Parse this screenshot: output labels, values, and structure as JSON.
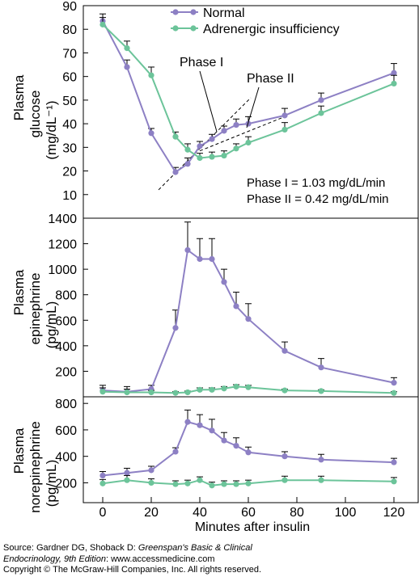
{
  "chart_data": [
    {
      "type": "line",
      "ylabel_lines": [
        "Plasma",
        "glucose",
        "(mg/dL⁻¹)"
      ],
      "ylim": [
        0,
        90
      ],
      "yticks": [
        "10",
        "20",
        "30",
        "40",
        "50",
        "60",
        "70",
        "80",
        "90"
      ],
      "ytick_values": [
        10,
        20,
        30,
        40,
        50,
        60,
        70,
        80,
        90
      ],
      "legend": {
        "placement": "top-center",
        "items": [
          "Normal",
          "Adrenergic insufficiency"
        ]
      },
      "series": [
        {
          "name": "Normal",
          "color": "#8d80c4",
          "x": [
            0,
            10,
            20,
            30,
            35,
            40,
            45,
            50,
            55,
            60,
            75,
            90,
            120
          ],
          "y": [
            83.5,
            64,
            36,
            19.5,
            23,
            30.5,
            33.5,
            37,
            39.5,
            40,
            43.5,
            50,
            61.5
          ],
          "err": [
            3,
            3,
            2,
            2,
            2.5,
            2,
            2,
            2,
            2.5,
            3,
            3,
            3,
            4
          ]
        },
        {
          "name": "Adrenergic insufficiency",
          "color": "#6cc49a",
          "x": [
            0,
            10,
            20,
            30,
            35,
            40,
            45,
            50,
            55,
            60,
            75,
            90,
            120
          ],
          "y": [
            82,
            72,
            60.5,
            34.5,
            29,
            25.5,
            26,
            26.5,
            29.5,
            32,
            37.5,
            44.5,
            57
          ],
          "err": [
            3,
            3,
            3.5,
            2,
            2.5,
            2,
            2,
            2,
            2,
            2.5,
            3,
            3,
            3.5
          ]
        }
      ],
      "annotations": {
        "phase1_label": "Phase I",
        "phase2_label": "Phase II",
        "rate1": "Phase I = 1.03 mg/dL/min",
        "rate2": "Phase II = 0.42 mg/dL/min"
      },
      "phase_lines": {
        "phase1": {
          "x": [
            23,
            61
          ],
          "y": [
            12,
            51
          ]
        },
        "phase2": {
          "x": [
            40,
            75
          ],
          "y": [
            28.5,
            43
          ]
        }
      }
    },
    {
      "type": "line",
      "ylabel_lines": [
        "Plasma",
        "epinephrine",
        "(pg/mL)"
      ],
      "ylim": [
        0,
        1400
      ],
      "yticks": [
        "200",
        "400",
        "600",
        "800",
        "1000",
        "1200",
        "1400"
      ],
      "ytick_values": [
        200,
        400,
        600,
        800,
        1000,
        1200,
        1400
      ],
      "series": [
        {
          "name": "Normal",
          "color": "#8d80c4",
          "x": [
            0,
            10,
            20,
            30,
            35,
            40,
            45,
            50,
            55,
            60,
            75,
            90,
            120
          ],
          "y": [
            50,
            40,
            60,
            540,
            1150,
            1080,
            1080,
            900,
            710,
            610,
            360,
            230,
            110
          ],
          "err": [
            40,
            40,
            30,
            140,
            220,
            160,
            160,
            100,
            110,
            120,
            70,
            70,
            40
          ]
        },
        {
          "name": "Adrenergic insufficiency",
          "color": "#6cc49a",
          "x": [
            0,
            10,
            20,
            30,
            35,
            40,
            45,
            50,
            55,
            60,
            75,
            90,
            120
          ],
          "y": [
            40,
            35,
            35,
            30,
            35,
            55,
            55,
            65,
            80,
            75,
            50,
            45,
            30
          ],
          "err": [
            30,
            25,
            15,
            10,
            10,
            15,
            15,
            15,
            15,
            15,
            10,
            10,
            10
          ]
        }
      ]
    },
    {
      "type": "line",
      "ylabel_lines": [
        "Plasma",
        "norepinephrine",
        "(pg/mL)"
      ],
      "ylim": [
        50,
        850
      ],
      "yticks": [
        "200",
        "400",
        "600",
        "800"
      ],
      "ytick_values": [
        200,
        400,
        600,
        800
      ],
      "series": [
        {
          "name": "Normal",
          "color": "#8d80c4",
          "x": [
            0,
            10,
            20,
            30,
            35,
            40,
            45,
            50,
            55,
            60,
            75,
            90,
            120
          ],
          "y": [
            255,
            275,
            295,
            435,
            660,
            635,
            595,
            520,
            480,
            430,
            400,
            375,
            355
          ],
          "err": [
            30,
            35,
            30,
            30,
            90,
            80,
            85,
            60,
            60,
            40,
            35,
            40,
            30
          ]
        },
        {
          "name": "Adrenergic insufficiency",
          "color": "#6cc49a",
          "x": [
            0,
            10,
            20,
            30,
            35,
            40,
            45,
            50,
            55,
            60,
            75,
            90,
            120
          ],
          "y": [
            195,
            220,
            200,
            190,
            195,
            220,
            180,
            190,
            190,
            195,
            220,
            220,
            210
          ],
          "err": [
            30,
            35,
            30,
            25,
            25,
            25,
            25,
            25,
            25,
            25,
            30,
            30,
            30
          ]
        }
      ]
    }
  ],
  "xaxis": {
    "label": "Minutes after insulin",
    "xlim": [
      -8,
      130
    ],
    "ticks": [
      "0",
      "20",
      "40",
      "60",
      "80",
      "100",
      "120"
    ],
    "tick_values": [
      0,
      20,
      40,
      60,
      80,
      100,
      120
    ]
  },
  "source": {
    "line1_prefix": "Source: Gardner DG, Shoback D: ",
    "line1_title": "Greenspan's Basic & Clinical",
    "line2_title": "Endocrinology, 9th Edition",
    "line2_rest": ": www.accessmedicine.com",
    "line3": "Copyright © The McGraw-Hill Companies, Inc. All rights reserved."
  }
}
